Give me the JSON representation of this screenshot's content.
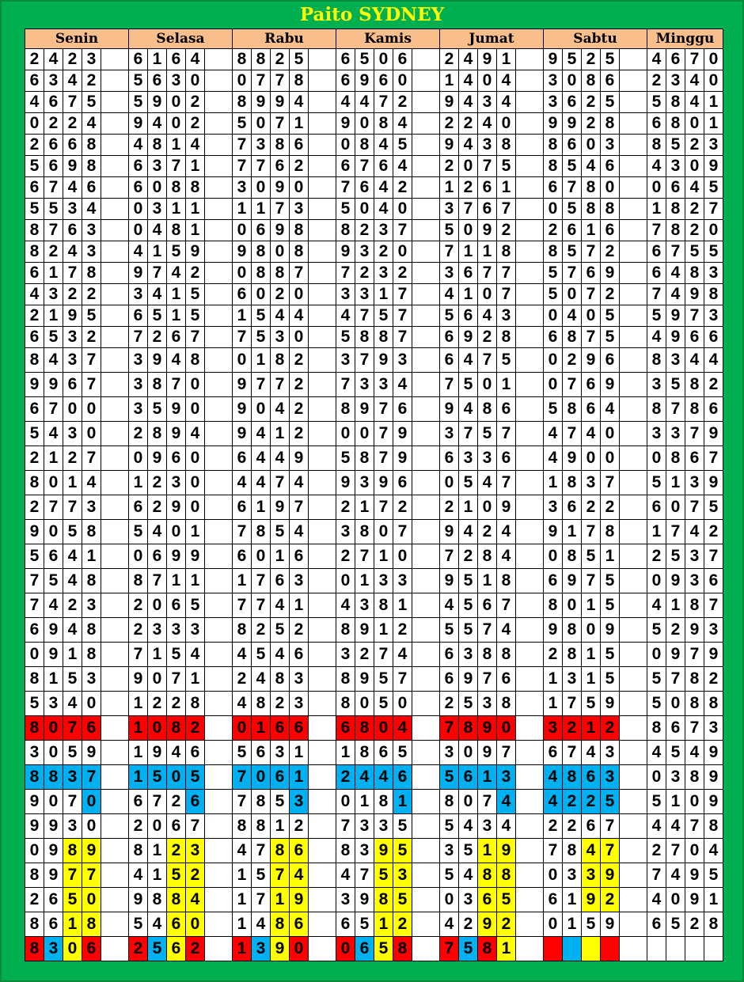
{
  "title": "Paito SYDNEY",
  "days": [
    "Senin",
    "Selasa",
    "Rabu",
    "Kamis",
    "Jumat",
    "Sabtu",
    "Minggu"
  ],
  "colors": {
    "R": "#ff0000",
    "B": "#00b0f0",
    "Y": "#ffff00",
    "background": "#00b050",
    "header": "#f8be8c",
    "title": "#ffff00"
  },
  "rows": [
    [
      "2423",
      "6164",
      "8825",
      "6506",
      "2491",
      "9525",
      "4670"
    ],
    [
      "6342",
      "5630",
      "0778",
      "6960",
      "1404",
      "3086",
      "2340"
    ],
    [
      "4675",
      "5902",
      "8994",
      "4472",
      "9434",
      "3625",
      "5841"
    ],
    [
      "0224",
      "9402",
      "5071",
      "9084",
      "2240",
      "9928",
      "6801"
    ],
    [
      "2668",
      "4814",
      "7386",
      "0845",
      "9438",
      "8603",
      "8523"
    ],
    [
      "5698",
      "6371",
      "7762",
      "6764",
      "2075",
      "8546",
      "4309"
    ],
    [
      "6746",
      "6088",
      "3090",
      "7642",
      "1261",
      "6780",
      "0645"
    ],
    [
      "5534",
      "0311",
      "1173",
      "5040",
      "3767",
      "0588",
      "1827"
    ],
    [
      "8763",
      "0481",
      "0698",
      "8237",
      "5092",
      "2616",
      "7820"
    ],
    [
      "8243",
      "4159",
      "9808",
      "9320",
      "7118",
      "8572",
      "6755"
    ],
    [
      "6178",
      "9742",
      "0887",
      "7232",
      "3677",
      "5769",
      "6483"
    ],
    [
      "4322",
      "3415",
      "6020",
      "3317",
      "4107",
      "5072",
      "7498"
    ],
    [
      "2195",
      "6515",
      "1544",
      "4757",
      "5643",
      "0405",
      "5973"
    ],
    [
      "6532",
      "7267",
      "7530",
      "5887",
      "6928",
      "6875",
      "4966"
    ],
    [
      "8437",
      "3948",
      "0182",
      "3793",
      "6475",
      "0296",
      "8344"
    ],
    [
      "9967",
      "3870",
      "9772",
      "7334",
      "7501",
      "0769",
      "3582"
    ],
    [
      "6700",
      "3590",
      "9042",
      "8976",
      "9486",
      "5864",
      "8786"
    ],
    [
      "5430",
      "2894",
      "9412",
      "0079",
      "3757",
      "4740",
      "3379"
    ],
    [
      "2127",
      "0960",
      "6449",
      "5879",
      "6336",
      "4900",
      "0867"
    ],
    [
      "8014",
      "1230",
      "4474",
      "9396",
      "0547",
      "1837",
      "5139"
    ],
    [
      "2773",
      "6290",
      "6197",
      "2172",
      "2109",
      "3622",
      "6075"
    ],
    [
      "9058",
      "5401",
      "7854",
      "3807",
      "9424",
      "9178",
      "1742"
    ],
    [
      "5641",
      "0699",
      "6016",
      "2710",
      "7284",
      "0851",
      "2537"
    ],
    [
      "7548",
      "8711",
      "1763",
      "0133",
      "9518",
      "6975",
      "0936"
    ],
    [
      "7423",
      "2065",
      "7741",
      "4381",
      "4567",
      "8015",
      "4187"
    ],
    [
      "6948",
      "2333",
      "8252",
      "8912",
      "5574",
      "9809",
      "5293"
    ],
    [
      "0918",
      "7154",
      "4546",
      "3274",
      "6388",
      "2815",
      "0979"
    ],
    [
      "8153",
      "9071",
      "2483",
      "8957",
      "6976",
      "1315",
      "5782"
    ],
    [
      "5340",
      "1228",
      "4823",
      "8050",
      "2538",
      "1759",
      "5088"
    ],
    [
      "8076",
      "1082",
      "0166",
      "6804",
      "7890",
      "3212",
      "8673"
    ],
    [
      "3059",
      "1946",
      "5631",
      "1865",
      "3097",
      "6743",
      "4549"
    ],
    [
      "8837",
      "1505",
      "7061",
      "2446",
      "5613",
      "4863",
      "0389"
    ],
    [
      "9070",
      "6726",
      "7853",
      "0181",
      "8074",
      "4225",
      "5109"
    ],
    [
      "9930",
      "2067",
      "8812",
      "7335",
      "5434",
      "2267",
      "4478"
    ],
    [
      "0989",
      "8123",
      "4786",
      "8395",
      "3519",
      "7847",
      "2704"
    ],
    [
      "8977",
      "4152",
      "1574",
      "4753",
      "5488",
      "0339",
      "7495"
    ],
    [
      "2650",
      "9884",
      "1719",
      "3985",
      "0365",
      "6192",
      "4091"
    ],
    [
      "8618",
      "5460",
      "1486",
      "6512",
      "4292",
      "0159",
      "6528"
    ],
    [
      "8306",
      "2562",
      "1390",
      "0658",
      "7581",
      "",
      ""
    ]
  ],
  "highlights": {
    "29": [
      "RRRR",
      "RRRR",
      "RRRR",
      "RRRR",
      "RRRR",
      "RRRR",
      "----"
    ],
    "31": [
      "BBBB",
      "BBBB",
      "BBBB",
      "BBBB",
      "BBBB",
      "BBBB",
      "----"
    ],
    "32": [
      "---B",
      "---B",
      "---B",
      "---B",
      "---B",
      "BBBB",
      "----"
    ],
    "34": [
      "--YY",
      "--YY",
      "--YY",
      "--YY",
      "--YY",
      "--YY",
      "----"
    ],
    "35": [
      "--YY",
      "--YY",
      "--YY",
      "--YY",
      "--YY",
      "--YY",
      "----"
    ],
    "36": [
      "--YY",
      "--YY",
      "--YY",
      "--YY",
      "--YY",
      "--YY",
      "----"
    ],
    "37": [
      "--YY",
      "--YY",
      "--YY",
      "--YY",
      "--YY",
      "----",
      "----"
    ],
    "38": [
      "RBYR",
      "RBYR",
      "RBYR",
      "RBYR",
      "RBRY",
      "RBYR",
      "----"
    ]
  }
}
